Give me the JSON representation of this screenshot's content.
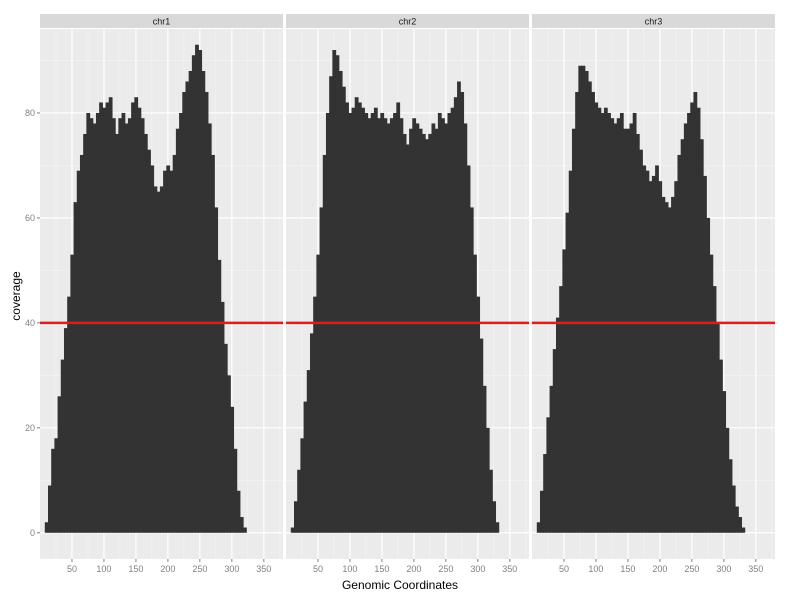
{
  "chart_data": {
    "type": "bar",
    "xlabel": "Genomic Coordinates",
    "ylabel": "coverage",
    "xlim": [
      0,
      380
    ],
    "ylim": [
      -5,
      96
    ],
    "x_ticks": [
      50,
      100,
      150,
      200,
      250,
      300,
      350
    ],
    "y_ticks": [
      0,
      20,
      40,
      60,
      80
    ],
    "grid": true,
    "legend": "none",
    "bar_color": "#333333",
    "panel_background": "#ebebeb",
    "strip_background": "#d9d9d9",
    "reference_line": {
      "y": 40,
      "color": "#e41a1c"
    },
    "x": [
      10,
      15,
      20,
      25,
      30,
      35,
      40,
      45,
      50,
      55,
      60,
      65,
      70,
      75,
      80,
      85,
      90,
      95,
      100,
      105,
      110,
      115,
      120,
      125,
      130,
      135,
      140,
      145,
      150,
      155,
      160,
      165,
      170,
      175,
      180,
      185,
      190,
      195,
      200,
      205,
      210,
      215,
      220,
      225,
      230,
      235,
      240,
      245,
      250,
      255,
      260,
      265,
      270,
      275,
      280,
      285,
      290,
      295,
      300,
      305,
      310,
      315,
      320,
      325,
      330,
      335,
      340,
      345,
      350,
      355,
      360,
      365,
      370
    ],
    "panels": [
      {
        "name": "chr1",
        "values": [
          2,
          9,
          16,
          18,
          26,
          33,
          39,
          45,
          53,
          63,
          69,
          72,
          76,
          80,
          79,
          78,
          80,
          82,
          81,
          82,
          83,
          79,
          76,
          79,
          80,
          78,
          79,
          82,
          83,
          81,
          79,
          76,
          73,
          70,
          66,
          65,
          66,
          69,
          70,
          69,
          72,
          77,
          80,
          84,
          86,
          88,
          91,
          93,
          92,
          88,
          84,
          78,
          72,
          62,
          52,
          44,
          36,
          30,
          24,
          16,
          8,
          3,
          1,
          0,
          0,
          0,
          0,
          0,
          0,
          0,
          0,
          0,
          0
        ]
      },
      {
        "name": "chr2",
        "values": [
          1,
          6,
          12,
          18,
          25,
          31,
          38,
          45,
          53,
          62,
          72,
          80,
          87,
          92,
          91,
          88,
          85,
          82,
          80,
          81,
          83,
          82,
          81,
          80,
          79,
          80,
          81,
          79,
          80,
          79,
          78,
          79,
          80,
          82,
          79,
          76,
          74,
          77,
          79,
          78,
          77,
          76,
          75,
          76,
          78,
          77,
          80,
          79,
          78,
          80,
          81,
          83,
          86,
          84,
          78,
          70,
          62,
          53,
          45,
          37,
          28,
          20,
          12,
          6,
          2,
          0,
          0,
          0,
          0,
          0,
          0,
          0,
          0
        ]
      },
      {
        "name": "chr3",
        "values": [
          2,
          8,
          15,
          22,
          28,
          35,
          41,
          47,
          54,
          61,
          69,
          77,
          84,
          89,
          89,
          88,
          86,
          84,
          82,
          81,
          80,
          81,
          80,
          79,
          78,
          79,
          80,
          77,
          77,
          78,
          80,
          76,
          73,
          70,
          69,
          67,
          68,
          70,
          67,
          64,
          63,
          62,
          64,
          67,
          72,
          75,
          78,
          80,
          82,
          84,
          81,
          75,
          68,
          60,
          53,
          47,
          40,
          33,
          27,
          20,
          14,
          9,
          5,
          3,
          1,
          0,
          0,
          0,
          0,
          0,
          0,
          0,
          0
        ]
      }
    ]
  }
}
